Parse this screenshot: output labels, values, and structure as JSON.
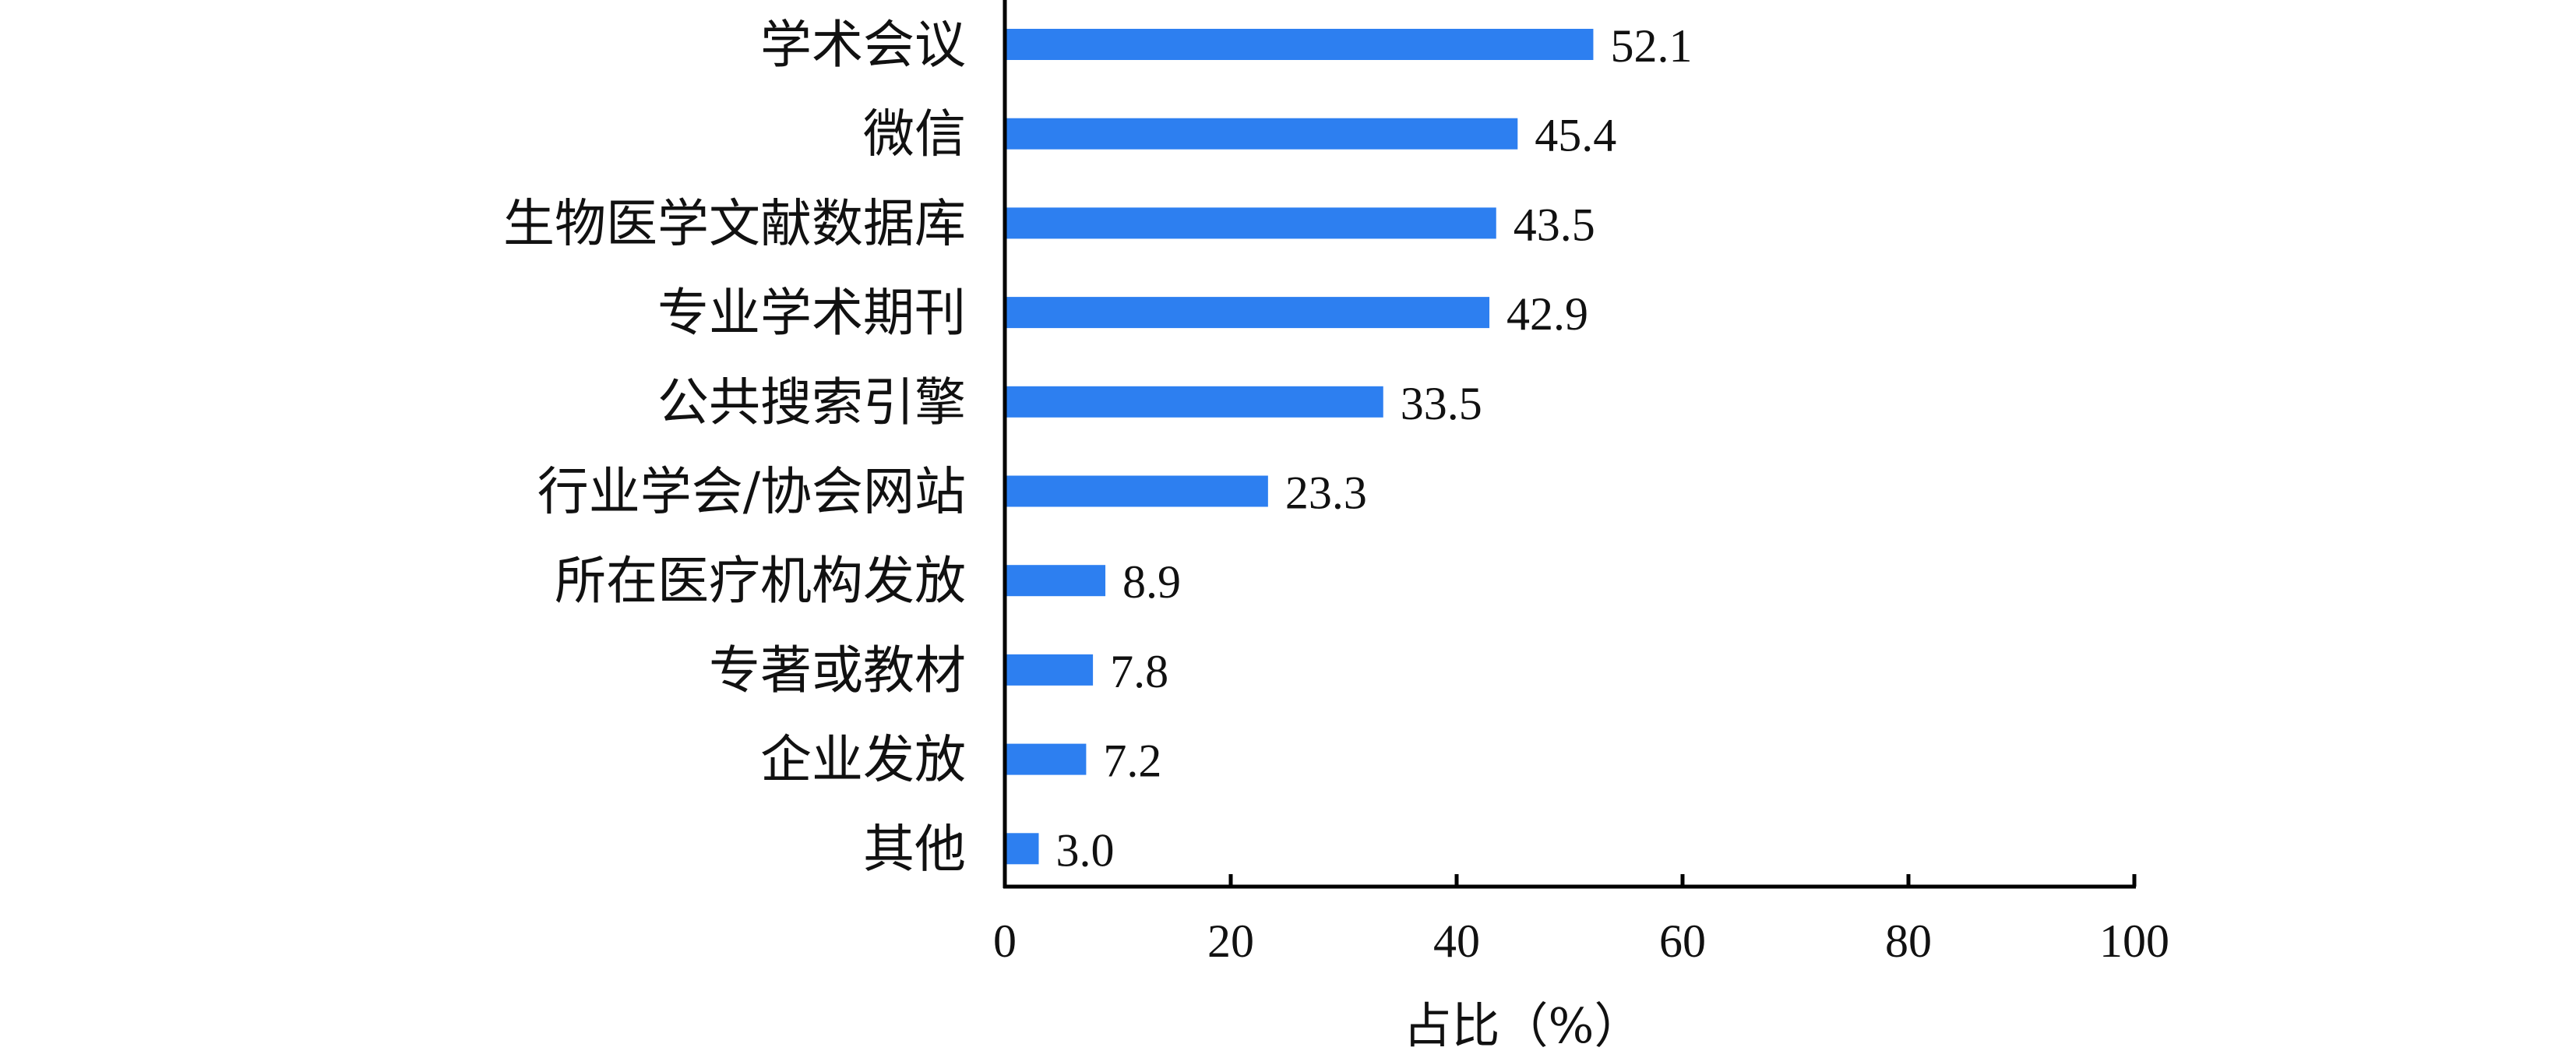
{
  "chart_data": {
    "type": "bar",
    "orientation": "horizontal",
    "categories": [
      "学术会议",
      "微信",
      "生物医学文献数据库",
      "专业学术期刊",
      "公共搜索引擎",
      "行业学会/协会网站",
      "所在医疗机构发放",
      "专著或教材",
      "企业发放",
      "其他"
    ],
    "values": [
      52.1,
      45.4,
      43.5,
      42.9,
      33.5,
      23.3,
      8.9,
      7.8,
      7.2,
      3.0
    ],
    "value_labels": [
      "52.1",
      "45.4",
      "43.5",
      "42.9",
      "33.5",
      "23.3",
      "8.9",
      "7.8",
      "7.2",
      "3.0"
    ],
    "xlabel": "占比（%）",
    "xlim": [
      0,
      100
    ],
    "xticks": [
      0,
      20,
      40,
      60,
      80,
      100
    ],
    "xtick_labels": [
      "0",
      "20",
      "40",
      "60",
      "80",
      "100"
    ],
    "grid": false,
    "legend": "none",
    "bar_color": "#2d7ff0"
  }
}
